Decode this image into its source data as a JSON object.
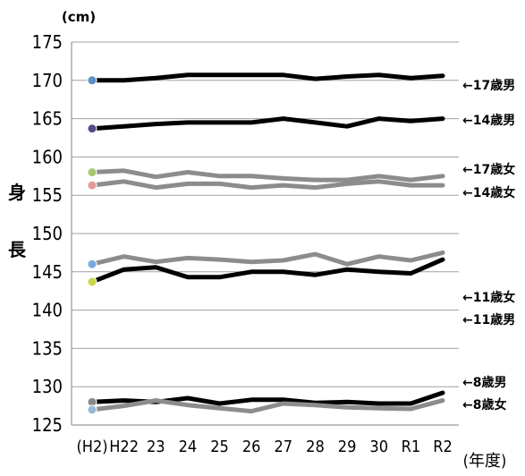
{
  "chart_data": {
    "type": "line",
    "title": "",
    "unit_label": "(cm)",
    "ylabel": "身長",
    "xlabel": "(年度)",
    "categories": [
      "(H2)",
      "H22",
      "23",
      "24",
      "25",
      "26",
      "27",
      "28",
      "29",
      "30",
      "R1",
      "R2"
    ],
    "ylim": [
      125,
      175
    ],
    "yticks": [
      175,
      170,
      165,
      160,
      155,
      150,
      145,
      140,
      135,
      130,
      125
    ],
    "grid": "horizontal",
    "series": [
      {
        "name": "←17歳男",
        "color": "#000000",
        "values": [
          170.0,
          170.0,
          170.3,
          170.7,
          170.7,
          170.7,
          170.7,
          170.2,
          170.5,
          170.7,
          170.3,
          170.6
        ]
      },
      {
        "name": "←14歳男",
        "color": "#000000",
        "values": [
          163.7,
          164.0,
          164.3,
          164.5,
          164.5,
          164.5,
          165.0,
          164.5,
          164.0,
          165.0,
          164.7,
          165.0
        ]
      },
      {
        "name": "←17歳女",
        "color": "#8c8c8c",
        "values": [
          158.0,
          158.2,
          157.4,
          158.0,
          157.5,
          157.5,
          157.2,
          157.0,
          157.0,
          157.5,
          157.0,
          157.5
        ]
      },
      {
        "name": "←14歳女",
        "color": "#8c8c8c",
        "values": [
          156.3,
          156.8,
          156.0,
          156.5,
          156.5,
          156.0,
          156.3,
          156.0,
          156.5,
          156.8,
          156.3,
          156.3
        ]
      },
      {
        "name": "←11歳女",
        "color": "#8c8c8c",
        "values": [
          146.0,
          147.0,
          146.3,
          146.8,
          146.6,
          146.3,
          146.5,
          147.3,
          146.0,
          147.0,
          146.5,
          147.5
        ]
      },
      {
        "name": "←11歳男",
        "color": "#000000",
        "values": [
          143.7,
          145.3,
          145.6,
          144.3,
          144.3,
          145.0,
          145.0,
          144.6,
          145.3,
          145.0,
          144.8,
          146.6
        ]
      },
      {
        "name": "←8歳男",
        "color": "#000000",
        "values": [
          128.0,
          128.2,
          128.0,
          128.5,
          127.8,
          128.3,
          128.3,
          127.9,
          128.0,
          127.8,
          127.8,
          129.2
        ]
      },
      {
        "name": "←8歳女",
        "color": "#8c8c8c",
        "values": [
          127.0,
          127.5,
          128.2,
          127.6,
          127.2,
          126.8,
          127.8,
          127.6,
          127.3,
          127.2,
          127.1,
          128.2
        ]
      }
    ],
    "markers_at_first_point": [
      {
        "series": "←17歳男",
        "color": "#5a8fc8"
      },
      {
        "series": "←14歳男",
        "color": "#5a4a8a"
      },
      {
        "series": "←17歳女",
        "color": "#a8c870"
      },
      {
        "series": "←14歳女",
        "color": "#e49a9a"
      },
      {
        "series": "←11歳女",
        "color": "#7aa8e0"
      },
      {
        "series": "←11歳男",
        "color": "#c8d84a"
      },
      {
        "series": "←8歳男",
        "color": "#888888"
      },
      {
        "series": "←8歳女",
        "color": "#9ab8d8"
      }
    ]
  }
}
